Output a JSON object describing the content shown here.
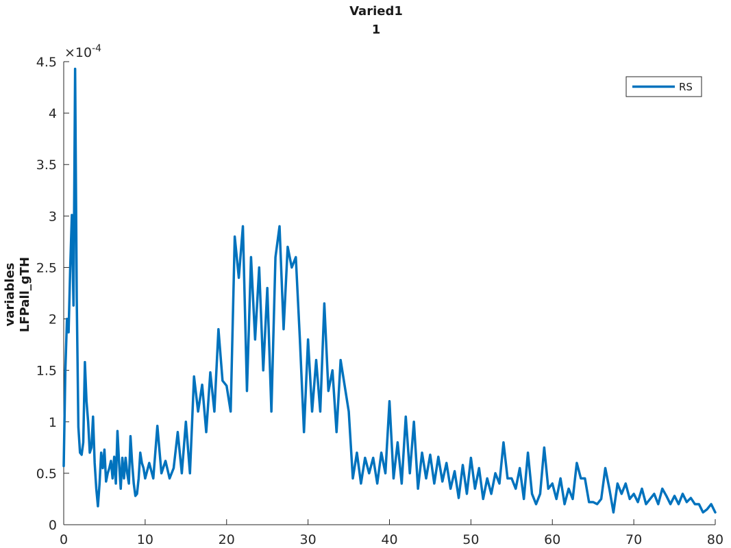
{
  "chart_data": {
    "type": "line",
    "title": [
      "Varied1",
      "1"
    ],
    "xlabel": "",
    "ylabel": [
      "variables",
      "LFPall_gTH"
    ],
    "xlim": [
      0,
      80
    ],
    "ylim": [
      0,
      0.00045
    ],
    "xticks": [
      0,
      10,
      20,
      30,
      40,
      50,
      60,
      70,
      80
    ],
    "xtick_labels": [
      "0",
      "10",
      "20",
      "30",
      "40",
      "50",
      "60",
      "70",
      "80"
    ],
    "yticks": [
      0,
      5e-05,
      0.0001,
      0.00015,
      0.0002,
      0.00025,
      0.0003,
      0.00035,
      0.0004,
      0.00045
    ],
    "ytick_labels": [
      "0",
      "0.5",
      "1",
      "1.5",
      "2",
      "2.5",
      "3",
      "3.5",
      "4",
      "4.5"
    ],
    "y_exponent_label": "×10",
    "y_exponent_power": "-4",
    "grid": false,
    "legend": {
      "position": "top-right",
      "entries": [
        "RS"
      ]
    },
    "series": [
      {
        "name": "RS",
        "color": "#0072BD",
        "x": [
          0,
          0.2,
          0.4,
          0.6,
          0.8,
          1.0,
          1.2,
          1.4,
          1.6,
          1.8,
          2.0,
          2.2,
          2.4,
          2.6,
          2.8,
          3.0,
          3.2,
          3.4,
          3.6,
          3.8,
          4.0,
          4.2,
          4.4,
          4.6,
          4.8,
          5.0,
          5.2,
          5.4,
          5.6,
          5.8,
          6.0,
          6.2,
          6.4,
          6.6,
          6.8,
          7.0,
          7.2,
          7.4,
          7.6,
          7.8,
          8.0,
          8.2,
          8.4,
          8.6,
          8.8,
          9.0,
          9.2,
          9.4,
          9.6,
          9.8,
          10,
          10.5,
          11,
          11.5,
          12,
          12.5,
          13,
          13.5,
          14,
          14.5,
          15,
          15.5,
          16,
          16.5,
          17,
          17.5,
          18,
          18.5,
          19,
          19.5,
          20,
          20.5,
          21,
          21.5,
          22,
          22.5,
          23,
          23.5,
          24,
          24.5,
          25,
          25.5,
          26,
          26.5,
          27,
          27.5,
          28,
          28.5,
          29,
          29.5,
          30,
          30.5,
          31,
          31.5,
          32,
          32.5,
          33,
          33.5,
          34,
          34.5,
          35,
          35.5,
          36,
          36.5,
          37,
          37.5,
          38,
          38.5,
          39,
          39.5,
          40,
          40.5,
          41,
          41.5,
          42,
          42.5,
          43,
          43.5,
          44,
          44.5,
          45,
          45.5,
          46,
          46.5,
          47,
          47.5,
          48,
          48.5,
          49,
          49.5,
          50,
          50.5,
          51,
          51.5,
          52,
          52.5,
          53,
          53.5,
          54,
          54.5,
          55,
          55.5,
          56,
          56.5,
          57,
          57.5,
          58,
          58.5,
          59,
          59.5,
          60,
          60.5,
          61,
          61.5,
          62,
          62.5,
          63,
          63.5,
          64,
          64.5,
          65,
          65.5,
          66,
          66.5,
          67,
          67.5,
          68,
          68.5,
          69,
          69.5,
          70,
          70.5,
          71,
          71.5,
          72,
          72.5,
          73,
          73.5,
          74,
          74.5,
          75,
          75.5,
          76,
          76.5,
          77,
          77.5,
          78,
          78.5,
          79,
          79.5,
          80
        ],
        "y": [
          5.7e-05,
          0.00015,
          0.0002,
          0.000187,
          0.00025,
          0.000301,
          0.000213,
          0.000443,
          0.00022,
          9.5e-05,
          7e-05,
          6.8e-05,
          8e-05,
          0.000158,
          0.00012,
          0.0001,
          7e-05,
          7.5e-05,
          0.000105,
          6e-05,
          3.5e-05,
          1.8e-05,
          4e-05,
          7e-05,
          5.5e-05,
          7.3e-05,
          4.2e-05,
          5e-05,
          5.5e-05,
          6.2e-05,
          4.5e-05,
          6.6e-05,
          4e-05,
          9.1e-05,
          6e-05,
          3.5e-05,
          6.5e-05,
          4.5e-05,
          6.5e-05,
          5e-05,
          4e-05,
          8.6e-05,
          6e-05,
          4e-05,
          2.8e-05,
          3e-05,
          4.5e-05,
          7e-05,
          6e-05,
          5.5e-05,
          4.5e-05,
          6e-05,
          4.5e-05,
          9.6e-05,
          5e-05,
          6.2e-05,
          4.5e-05,
          5.5e-05,
          9e-05,
          5e-05,
          0.0001,
          5e-05,
          0.000144,
          0.00011,
          0.000136,
          9e-05,
          0.000148,
          0.00011,
          0.00019,
          0.00014,
          0.000135,
          0.00011,
          0.00028,
          0.00024,
          0.00029,
          0.00013,
          0.00026,
          0.00018,
          0.00025,
          0.00015,
          0.00023,
          0.00011,
          0.00026,
          0.00029,
          0.00019,
          0.00027,
          0.00025,
          0.00026,
          0.00018,
          9e-05,
          0.00018,
          0.00011,
          0.00016,
          0.00011,
          0.000215,
          0.00013,
          0.00015,
          9e-05,
          0.00016,
          0.000135,
          0.00011,
          4.5e-05,
          7e-05,
          4e-05,
          6.5e-05,
          5e-05,
          6.5e-05,
          4e-05,
          7e-05,
          5e-05,
          0.00012,
          4.5e-05,
          8e-05,
          4e-05,
          0.000105,
          5e-05,
          0.0001,
          3.5e-05,
          7e-05,
          4.5e-05,
          6.8e-05,
          4e-05,
          6.6e-05,
          4.2e-05,
          6e-05,
          3.5e-05,
          5.2e-05,
          2.6e-05,
          5.8e-05,
          3e-05,
          6.5e-05,
          3.5e-05,
          5.5e-05,
          2.5e-05,
          4.5e-05,
          3e-05,
          5e-05,
          4e-05,
          8e-05,
          4.5e-05,
          4.5e-05,
          3.5e-05,
          5.5e-05,
          2.5e-05,
          7e-05,
          3e-05,
          2e-05,
          3e-05,
          7.5e-05,
          3.5e-05,
          4e-05,
          2.5e-05,
          4.5e-05,
          2e-05,
          3.5e-05,
          2.5e-05,
          6e-05,
          4.5e-05,
          4.5e-05,
          2.2e-05,
          2.2e-05,
          2e-05,
          2.5e-05,
          5.5e-05,
          3.5e-05,
          1.2e-05,
          4e-05,
          3e-05,
          4e-05,
          2.5e-05,
          3e-05,
          2.2e-05,
          3.5e-05,
          2e-05,
          2.5e-05,
          3e-05,
          2e-05,
          3.5e-05,
          2.8e-05,
          2e-05,
          2.8e-05,
          2e-05,
          3e-05,
          2.2e-05,
          2.6e-05,
          2e-05,
          2e-05,
          1.2e-05,
          1.5e-05,
          2e-05,
          1.2e-05
        ]
      }
    ]
  }
}
